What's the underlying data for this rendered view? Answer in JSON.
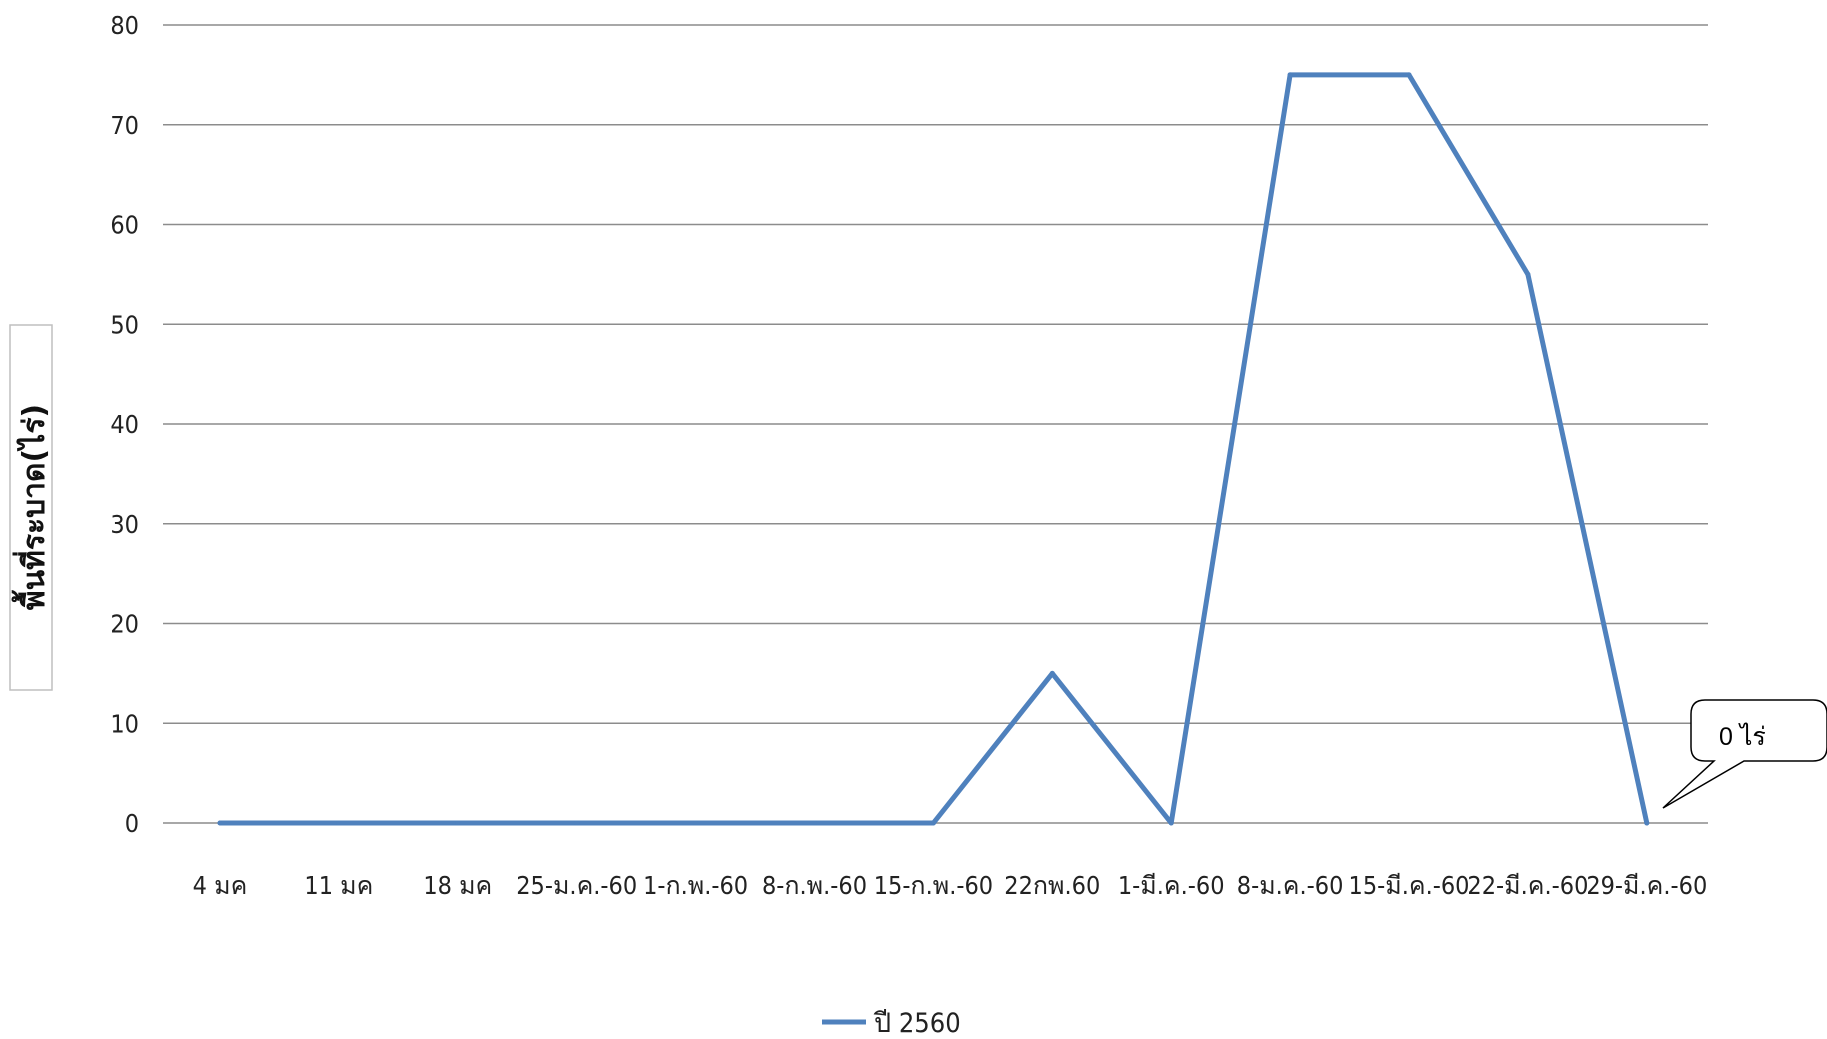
{
  "chart_data": {
    "type": "line",
    "categories": [
      "4 มค",
      "11 มค",
      "18 มค",
      "25-ม.ค.-60",
      "1-ก.พ.-60",
      "8-ก.พ.-60",
      "15-ก.พ.-60",
      "22กพ.60",
      "1-มี.ค.-60",
      "8-ม.ค.-60",
      "15-มี.ค.-60",
      "22-มี.ค.-60",
      "29-มี.ค.-60"
    ],
    "series": [
      {
        "name": "ปี 2560",
        "color": "#4F81BD",
        "values": [
          0,
          0,
          0,
          0,
          0,
          0,
          0,
          15,
          0,
          75,
          75,
          55,
          0
        ]
      }
    ],
    "ylabel": "พื้นที่ระบาด(ไร่)",
    "xlabel": "",
    "ylim": [
      0,
      80
    ],
    "yticks": [
      0,
      10,
      20,
      30,
      40,
      50,
      60,
      70,
      80
    ],
    "grid": true,
    "legend_position": "bottom",
    "annotation": {
      "text": "0 ไร่",
      "points_to_category": "29-มี.ค.-60"
    }
  },
  "colors": {
    "series": "#4F81BD",
    "grid": "#8C8C8C",
    "callout_border": "#000000"
  }
}
